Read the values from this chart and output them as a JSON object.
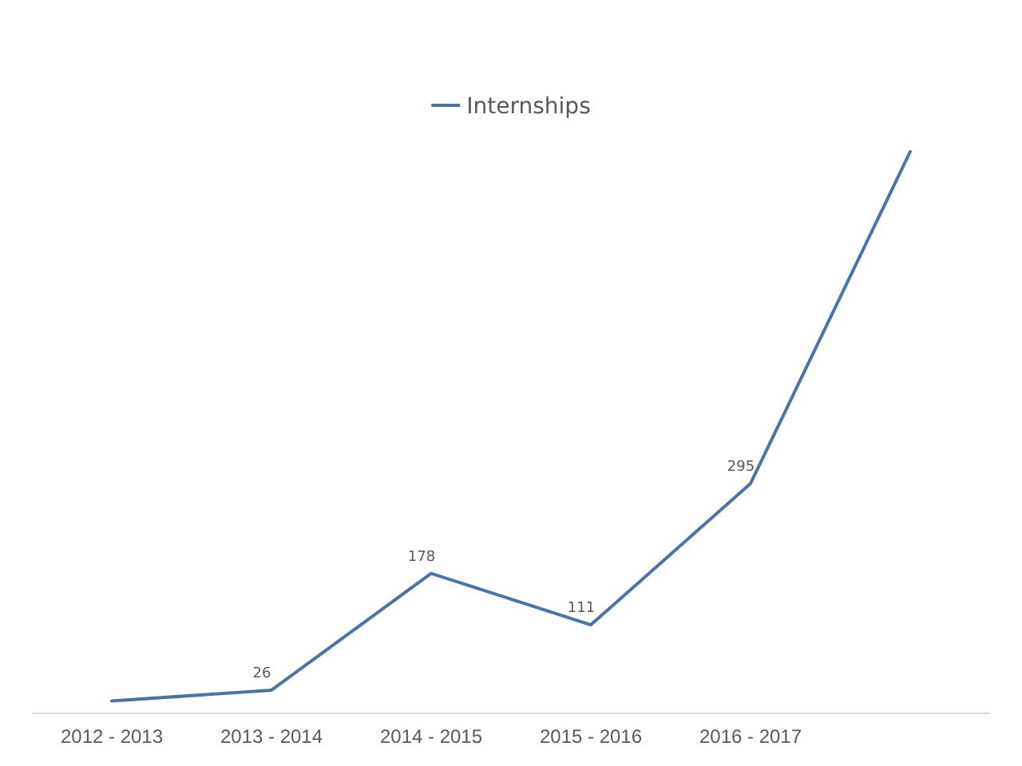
{
  "chart_data": {
    "type": "line",
    "categories": [
      "2012 - 2013",
      "2013 - 2014",
      "2014 - 2015",
      "2015 - 2016",
      "2016 - 2017",
      null
    ],
    "series": [
      {
        "name": "Internships",
        "color": "#4a72b0",
        "values": [
          12,
          26,
          178,
          111,
          295,
          727
        ],
        "value_labels": [
          null,
          "26",
          "178",
          "111",
          "295",
          null
        ]
      }
    ],
    "legend": "top",
    "grid": false,
    "marker": "none",
    "line_style": "solid"
  }
}
